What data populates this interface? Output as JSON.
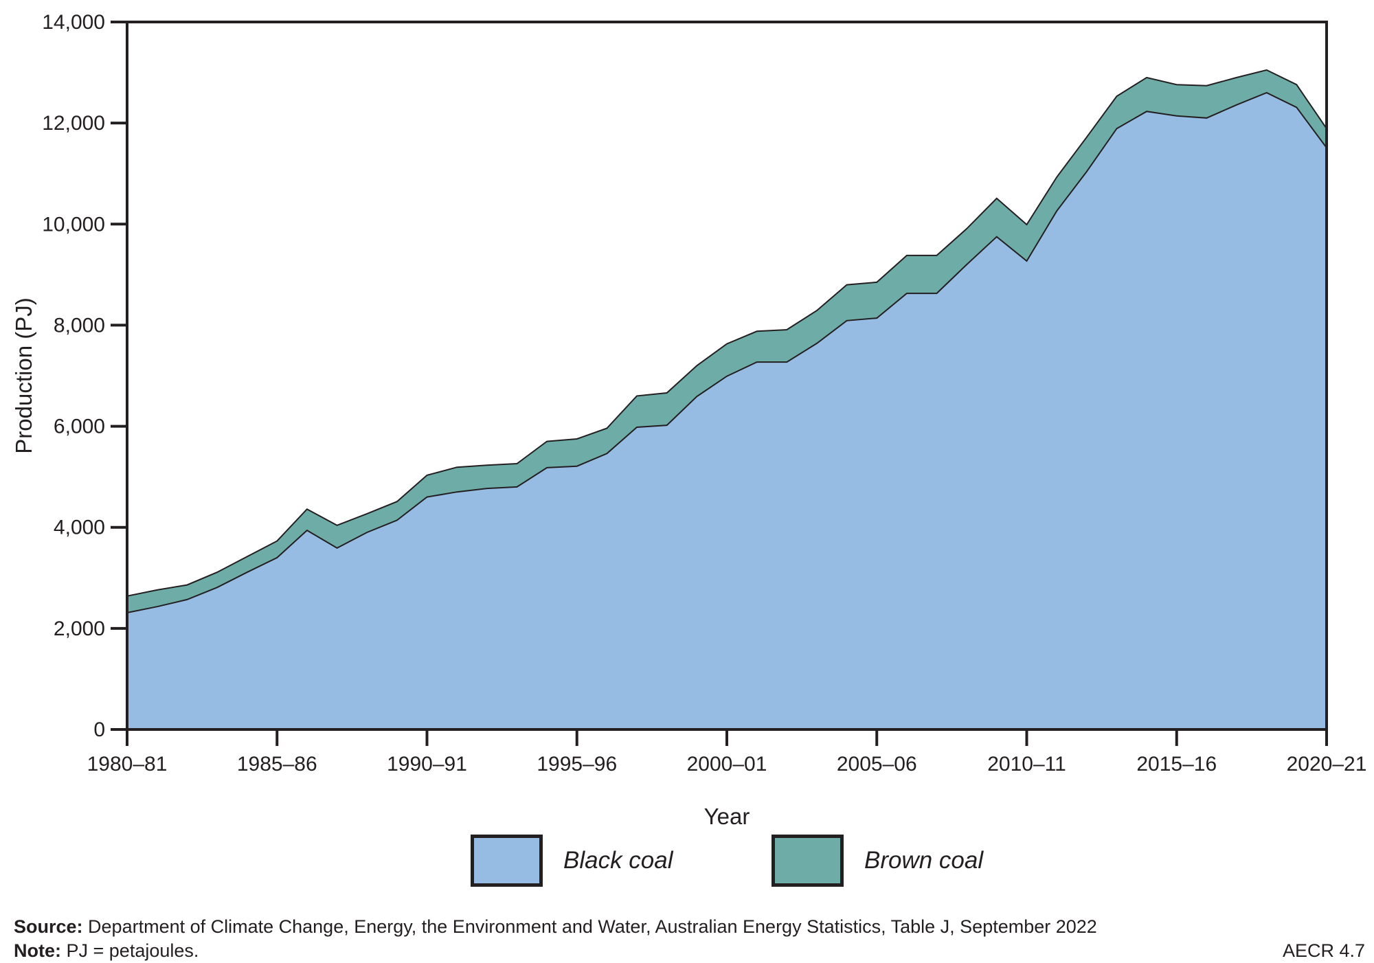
{
  "chart_data": {
    "type": "area",
    "stacked": true,
    "xlabel": "Year",
    "ylabel": "Production (PJ)",
    "ylim": [
      0,
      14000
    ],
    "grid": false,
    "legend_position": "bottom",
    "line_color": "#231f20",
    "categories": [
      "1980–81",
      "1981–82",
      "1982–83",
      "1983–84",
      "1984–85",
      "1985–86",
      "1986–87",
      "1987–88",
      "1988–89",
      "1989–90",
      "1990–91",
      "1991–92",
      "1992–93",
      "1993–94",
      "1994–95",
      "1995–96",
      "1996–97",
      "1997–98",
      "1998–99",
      "1999–00",
      "2000–01",
      "2001–02",
      "2002–03",
      "2003–04",
      "2004–05",
      "2005–06",
      "2006–07",
      "2007–08",
      "2008–09",
      "2009–10",
      "2010–11",
      "2011–12",
      "2012–13",
      "2013–14",
      "2014–15",
      "2015–16",
      "2016–17",
      "2017–18",
      "2018–19",
      "2019–20",
      "2020–21"
    ],
    "series": [
      {
        "name": "Black coal",
        "color": "#97bce4",
        "values": [
          2310,
          2430,
          2570,
          2810,
          3110,
          3400,
          3940,
          3590,
          3900,
          4140,
          4600,
          4700,
          4770,
          4800,
          5180,
          5210,
          5460,
          5980,
          6020,
          6590,
          6990,
          7270,
          7270,
          7640,
          8090,
          8140,
          8630,
          8630,
          9200,
          9750,
          9270,
          10260,
          11040,
          11890,
          12230,
          12140,
          12100,
          12360,
          12600,
          12310,
          11510
        ]
      },
      {
        "name": "Brown coal",
        "color": "#6eada7",
        "values": [
          330,
          330,
          290,
          300,
          310,
          330,
          420,
          450,
          370,
          370,
          430,
          490,
          460,
          460,
          520,
          540,
          500,
          620,
          640,
          610,
          640,
          610,
          640,
          650,
          710,
          710,
          750,
          750,
          710,
          760,
          720,
          670,
          680,
          640,
          670,
          620,
          640,
          540,
          450,
          450,
          380
        ]
      }
    ],
    "y_ticks": [
      {
        "value": 0,
        "label": "0"
      },
      {
        "value": 2000,
        "label": "2,000"
      },
      {
        "value": 4000,
        "label": "4,000"
      },
      {
        "value": 6000,
        "label": "6,000"
      },
      {
        "value": 8000,
        "label": "8,000"
      },
      {
        "value": 10000,
        "label": "10,000"
      },
      {
        "value": 12000,
        "label": "12,000"
      },
      {
        "value": 14000,
        "label": "14,000"
      }
    ],
    "x_ticks": [
      {
        "index": 0,
        "label": "1980–81"
      },
      {
        "index": 5,
        "label": "1985–86"
      },
      {
        "index": 10,
        "label": "1990–91"
      },
      {
        "index": 15,
        "label": "1995–96"
      },
      {
        "index": 20,
        "label": "2000–01"
      },
      {
        "index": 25,
        "label": "2005–06"
      },
      {
        "index": 30,
        "label": "2010–11"
      },
      {
        "index": 35,
        "label": "2015–16"
      },
      {
        "index": 40,
        "label": "2020–21"
      }
    ]
  },
  "legend": {
    "items": [
      {
        "label": "Black coal",
        "color": "#97bce4"
      },
      {
        "label": "Brown coal",
        "color": "#6eada7"
      }
    ]
  },
  "footer": {
    "source_label": "Source:",
    "source_text": " Department of Climate Change, Energy, the Environment and Water, Australian Energy Statistics, Table J, September 2022",
    "note_label": "Note:",
    "note_text": " PJ = petajoules.",
    "figure_ref": "AECR 4.7"
  }
}
